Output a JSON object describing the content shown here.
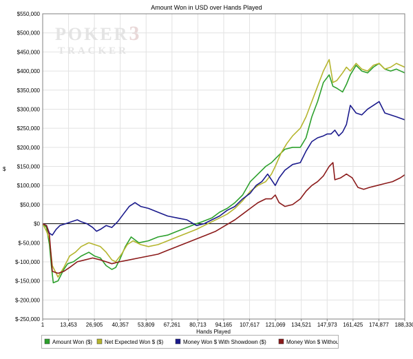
{
  "chart_data": {
    "type": "line",
    "title": "Amount Won in USD over Hands Played",
    "xlabel": "Hands Played",
    "ylabel": "$",
    "watermark": {
      "line1": "POKER",
      "suffix": "3",
      "line2": "TRACKER"
    },
    "xlim": [
      1,
      188330
    ],
    "ylim": [
      -250000,
      550000
    ],
    "grid": true,
    "legend_position": "bottom",
    "x_ticks": [
      1,
      13453,
      26905,
      40357,
      53809,
      67261,
      80713,
      94165,
      107617,
      121069,
      134521,
      147973,
      161425,
      174877,
      188330
    ],
    "x_tick_labels": [
      "1",
      "13,453",
      "26,905",
      "40,357",
      "53,809",
      "67,261",
      "80,713",
      "94,165",
      "107,617",
      "121,069",
      "134,521",
      "147,973",
      "161,425",
      "174,877",
      "188,330"
    ],
    "y_ticks": [
      -250000,
      -200000,
      -150000,
      -100000,
      -50000,
      0,
      50000,
      100000,
      150000,
      200000,
      250000,
      300000,
      350000,
      400000,
      450000,
      500000,
      550000
    ],
    "y_tick_labels": [
      "$-250,000",
      "$-200,000",
      "$-150,000",
      "$-100,000",
      "$-50,000",
      "$0",
      "$50,000",
      "$100,000",
      "$150,000",
      "$200,000",
      "$250,000",
      "$300,000",
      "$350,000",
      "$400,000",
      "$450,000",
      "$500,000",
      "$550,000"
    ],
    "series": [
      {
        "name": "Amount Won ($)",
        "color": "#2ca02c",
        "points": [
          [
            1,
            0
          ],
          [
            2000,
            -10000
          ],
          [
            3500,
            -55000
          ],
          [
            4500,
            -110000
          ],
          [
            5500,
            -155000
          ],
          [
            8000,
            -150000
          ],
          [
            11000,
            -120000
          ],
          [
            13000,
            -105000
          ],
          [
            16000,
            -100000
          ],
          [
            20000,
            -85000
          ],
          [
            24000,
            -75000
          ],
          [
            27000,
            -85000
          ],
          [
            30000,
            -90000
          ],
          [
            33000,
            -110000
          ],
          [
            36000,
            -120000
          ],
          [
            38000,
            -115000
          ],
          [
            40000,
            -95000
          ],
          [
            43000,
            -60000
          ],
          [
            46000,
            -35000
          ],
          [
            50000,
            -50000
          ],
          [
            55000,
            -45000
          ],
          [
            60000,
            -35000
          ],
          [
            65000,
            -30000
          ],
          [
            70000,
            -20000
          ],
          [
            75000,
            -10000
          ],
          [
            80000,
            0
          ],
          [
            83000,
            5000
          ],
          [
            88000,
            15000
          ],
          [
            92000,
            30000
          ],
          [
            96000,
            40000
          ],
          [
            100000,
            55000
          ],
          [
            104000,
            75000
          ],
          [
            108000,
            110000
          ],
          [
            112000,
            130000
          ],
          [
            116000,
            150000
          ],
          [
            119000,
            160000
          ],
          [
            121000,
            170000
          ],
          [
            124000,
            185000
          ],
          [
            126000,
            195000
          ],
          [
            130000,
            200000
          ],
          [
            134000,
            200000
          ],
          [
            137000,
            225000
          ],
          [
            140000,
            280000
          ],
          [
            143000,
            320000
          ],
          [
            146000,
            370000
          ],
          [
            149000,
            390000
          ],
          [
            151000,
            360000
          ],
          [
            153000,
            355000
          ],
          [
            156000,
            345000
          ],
          [
            158000,
            365000
          ],
          [
            160000,
            390000
          ],
          [
            163000,
            415000
          ],
          [
            166000,
            400000
          ],
          [
            169000,
            395000
          ],
          [
            172000,
            410000
          ],
          [
            175000,
            420000
          ],
          [
            178000,
            405000
          ],
          [
            181000,
            400000
          ],
          [
            184000,
            405000
          ],
          [
            188330,
            395000
          ]
        ]
      },
      {
        "name": "Net Expected Won $ ($)",
        "color": "#b5b52e",
        "points": [
          [
            1,
            0
          ],
          [
            2000,
            -20000
          ],
          [
            3500,
            -40000
          ],
          [
            5000,
            -110000
          ],
          [
            8000,
            -140000
          ],
          [
            11000,
            -115000
          ],
          [
            14000,
            -85000
          ],
          [
            17000,
            -75000
          ],
          [
            20000,
            -60000
          ],
          [
            24000,
            -50000
          ],
          [
            27000,
            -55000
          ],
          [
            30000,
            -60000
          ],
          [
            33000,
            -75000
          ],
          [
            36000,
            -95000
          ],
          [
            38000,
            -100000
          ],
          [
            41000,
            -80000
          ],
          [
            44000,
            -55000
          ],
          [
            47000,
            -45000
          ],
          [
            51000,
            -55000
          ],
          [
            55000,
            -60000
          ],
          [
            60000,
            -55000
          ],
          [
            65000,
            -45000
          ],
          [
            70000,
            -35000
          ],
          [
            75000,
            -25000
          ],
          [
            80000,
            -15000
          ],
          [
            84000,
            -5000
          ],
          [
            88000,
            5000
          ],
          [
            92000,
            15000
          ],
          [
            96000,
            25000
          ],
          [
            100000,
            40000
          ],
          [
            104000,
            60000
          ],
          [
            108000,
            85000
          ],
          [
            112000,
            100000
          ],
          [
            116000,
            110000
          ],
          [
            119000,
            130000
          ],
          [
            121000,
            150000
          ],
          [
            124000,
            185000
          ],
          [
            127000,
            210000
          ],
          [
            130000,
            230000
          ],
          [
            134000,
            250000
          ],
          [
            137000,
            280000
          ],
          [
            140000,
            320000
          ],
          [
            143000,
            360000
          ],
          [
            146000,
            400000
          ],
          [
            149000,
            430000
          ],
          [
            151000,
            370000
          ],
          [
            153000,
            375000
          ],
          [
            156000,
            395000
          ],
          [
            158000,
            410000
          ],
          [
            160000,
            400000
          ],
          [
            163000,
            420000
          ],
          [
            166000,
            405000
          ],
          [
            169000,
            400000
          ],
          [
            172000,
            415000
          ],
          [
            175000,
            420000
          ],
          [
            178000,
            405000
          ],
          [
            181000,
            410000
          ],
          [
            184000,
            420000
          ],
          [
            188330,
            410000
          ]
        ]
      },
      {
        "name": "Money Won $ With Showdown ($)",
        "color": "#1a1a8c",
        "points": [
          [
            1,
            0
          ],
          [
            2000,
            -5000
          ],
          [
            3500,
            -25000
          ],
          [
            5000,
            -30000
          ],
          [
            7000,
            -15000
          ],
          [
            9000,
            -5000
          ],
          [
            12000,
            0
          ],
          [
            15000,
            5000
          ],
          [
            18000,
            10000
          ],
          [
            20000,
            5000
          ],
          [
            23000,
            0
          ],
          [
            26000,
            -10000
          ],
          [
            28000,
            -20000
          ],
          [
            30000,
            -15000
          ],
          [
            33000,
            -5000
          ],
          [
            36000,
            -10000
          ],
          [
            39000,
            5000
          ],
          [
            42000,
            25000
          ],
          [
            45000,
            45000
          ],
          [
            48000,
            55000
          ],
          [
            51000,
            45000
          ],
          [
            55000,
            40000
          ],
          [
            60000,
            30000
          ],
          [
            65000,
            20000
          ],
          [
            70000,
            15000
          ],
          [
            75000,
            10000
          ],
          [
            80000,
            -5000
          ],
          [
            84000,
            0
          ],
          [
            88000,
            10000
          ],
          [
            92000,
            20000
          ],
          [
            96000,
            35000
          ],
          [
            100000,
            45000
          ],
          [
            104000,
            65000
          ],
          [
            108000,
            80000
          ],
          [
            111000,
            100000
          ],
          [
            114000,
            110000
          ],
          [
            117000,
            130000
          ],
          [
            119000,
            115000
          ],
          [
            121000,
            100000
          ],
          [
            123000,
            120000
          ],
          [
            126000,
            140000
          ],
          [
            130000,
            155000
          ],
          [
            134000,
            160000
          ],
          [
            137000,
            190000
          ],
          [
            140000,
            215000
          ],
          [
            143000,
            225000
          ],
          [
            146000,
            230000
          ],
          [
            148000,
            235000
          ],
          [
            150000,
            235000
          ],
          [
            152000,
            245000
          ],
          [
            154000,
            230000
          ],
          [
            156000,
            240000
          ],
          [
            158000,
            260000
          ],
          [
            160000,
            310000
          ],
          [
            163000,
            290000
          ],
          [
            166000,
            285000
          ],
          [
            169000,
            300000
          ],
          [
            172000,
            310000
          ],
          [
            175000,
            320000
          ],
          [
            178000,
            290000
          ],
          [
            181000,
            285000
          ],
          [
            184000,
            280000
          ],
          [
            188330,
            272000
          ]
        ]
      },
      {
        "name": "Money Won $ Without Showdown ($)",
        "color": "#8b1a1a",
        "points": [
          [
            1,
            0
          ],
          [
            2000,
            -5000
          ],
          [
            3500,
            -30000
          ],
          [
            5000,
            -125000
          ],
          [
            8000,
            -130000
          ],
          [
            11000,
            -125000
          ],
          [
            14000,
            -115000
          ],
          [
            18000,
            -100000
          ],
          [
            22000,
            -95000
          ],
          [
            26000,
            -90000
          ],
          [
            30000,
            -95000
          ],
          [
            33000,
            -100000
          ],
          [
            36000,
            -105000
          ],
          [
            40000,
            -100000
          ],
          [
            45000,
            -95000
          ],
          [
            50000,
            -90000
          ],
          [
            55000,
            -85000
          ],
          [
            60000,
            -80000
          ],
          [
            65000,
            -70000
          ],
          [
            70000,
            -60000
          ],
          [
            75000,
            -50000
          ],
          [
            80000,
            -40000
          ],
          [
            85000,
            -30000
          ],
          [
            90000,
            -20000
          ],
          [
            95000,
            -5000
          ],
          [
            100000,
            10000
          ],
          [
            104000,
            25000
          ],
          [
            108000,
            40000
          ],
          [
            112000,
            55000
          ],
          [
            116000,
            65000
          ],
          [
            119000,
            65000
          ],
          [
            121000,
            75000
          ],
          [
            123000,
            55000
          ],
          [
            126000,
            45000
          ],
          [
            130000,
            50000
          ],
          [
            134000,
            65000
          ],
          [
            137000,
            85000
          ],
          [
            140000,
            100000
          ],
          [
            143000,
            110000
          ],
          [
            146000,
            125000
          ],
          [
            149000,
            150000
          ],
          [
            151000,
            160000
          ],
          [
            152000,
            115000
          ],
          [
            155000,
            120000
          ],
          [
            158000,
            130000
          ],
          [
            161000,
            120000
          ],
          [
            164000,
            95000
          ],
          [
            167000,
            90000
          ],
          [
            170000,
            95000
          ],
          [
            174000,
            100000
          ],
          [
            178000,
            105000
          ],
          [
            182000,
            110000
          ],
          [
            186000,
            120000
          ],
          [
            188330,
            128000
          ]
        ]
      }
    ]
  }
}
